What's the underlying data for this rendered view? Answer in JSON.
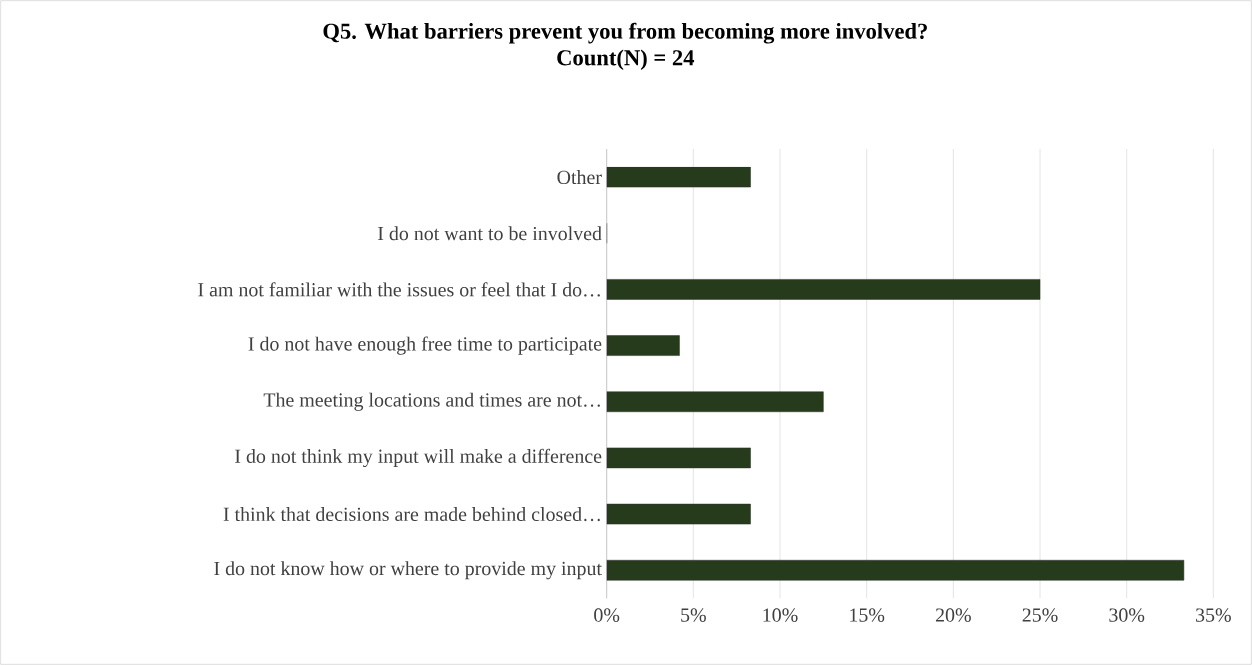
{
  "chart_data": {
    "type": "bar",
    "orientation": "horizontal",
    "title": "Q5. What barriers prevent you from becoming more involved?",
    "subtitle": "Count(N) = 24",
    "categories": [
      "Other",
      "I do not want to be involved",
      "I am not familiar with the issues or feel that I do…",
      "I do not have enough free time to participate",
      "The meeting locations and times are not…",
      "I do not think my input will make a difference",
      "I think that decisions are made behind closed…",
      "I do not know how or where to provide my input"
    ],
    "values": [
      8.3,
      0,
      25,
      4.2,
      12.5,
      8.3,
      8.3,
      33.3
    ],
    "color": "#263a1c",
    "xlim": [
      0,
      35
    ],
    "xticks": [
      {
        "value": 0,
        "label": "0%"
      },
      {
        "value": 5,
        "label": "5%"
      },
      {
        "value": 10,
        "label": "10%"
      },
      {
        "value": 15,
        "label": "15%"
      },
      {
        "value": 20,
        "label": "20%"
      },
      {
        "value": 25,
        "label": "25%"
      },
      {
        "value": 30,
        "label": "30%"
      },
      {
        "value": 35,
        "label": "35%"
      }
    ],
    "grid": "x"
  }
}
